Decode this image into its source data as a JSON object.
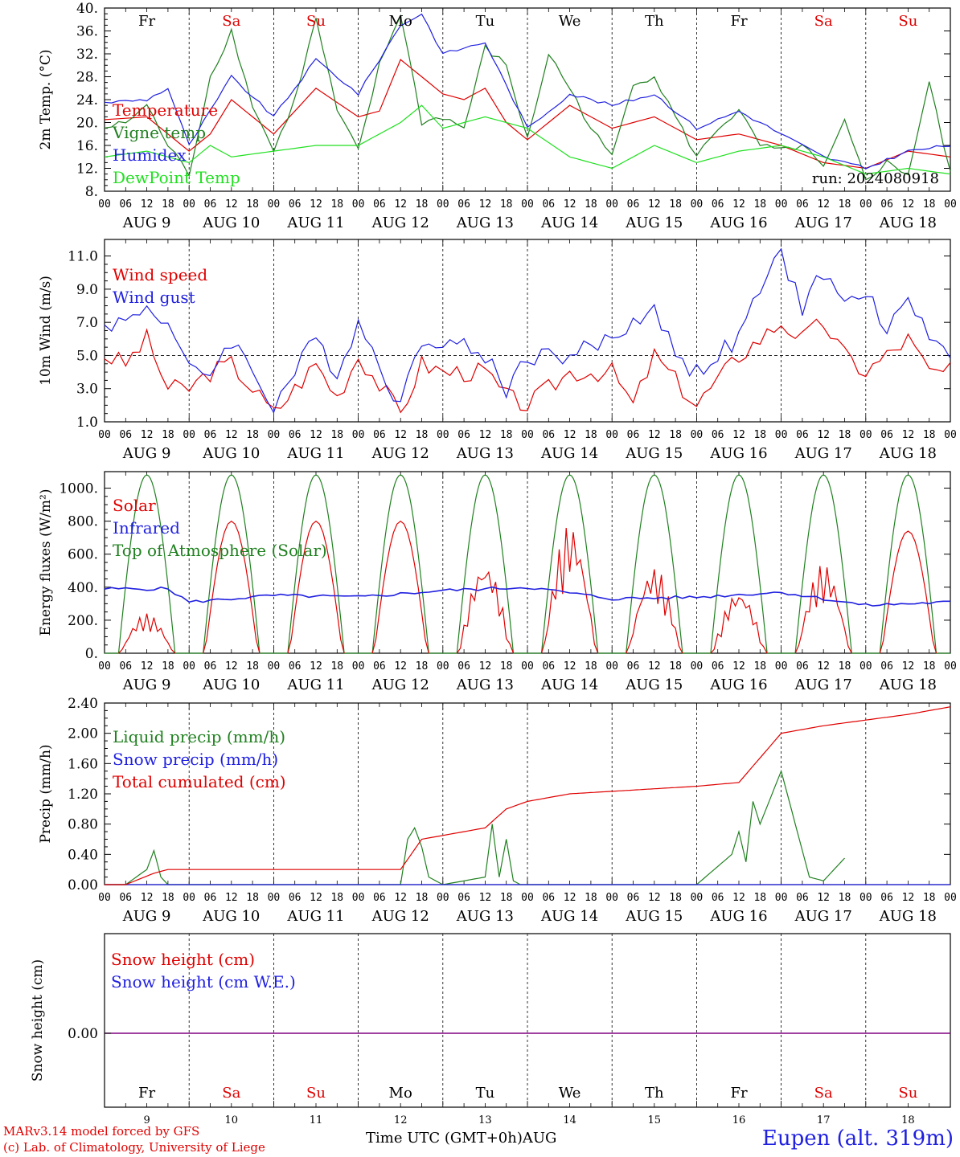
{
  "chart_data": [
    {
      "panel": "temperature",
      "type": "line",
      "ylabel": "2m Temp. (°C)",
      "ylim": [
        8,
        40
      ],
      "yticks": [
        "8.",
        "12.",
        "16.",
        "20.",
        "24.",
        "28.",
        "32.",
        "36.",
        "40."
      ],
      "run_label": "run: 2024080918",
      "day_labels": [
        "Fr",
        "Sa",
        "Su",
        "Mo",
        "Tu",
        "We",
        "Th",
        "Fr",
        "Sa",
        "Su"
      ],
      "weekend_color": "#e00000",
      "series": [
        {
          "name": "Temperature",
          "color": "#e00000",
          "x": [
            0,
            12,
            24,
            30,
            36,
            48,
            60,
            72,
            78,
            84,
            96,
            102,
            108,
            114,
            120,
            132,
            144,
            156,
            168,
            180,
            192,
            204,
            216,
            228,
            240
          ],
          "y": [
            20.5,
            21,
            15,
            18,
            24,
            18,
            26,
            21,
            22,
            31,
            25,
            24,
            26,
            20,
            17,
            23,
            19,
            21,
            17,
            18,
            16,
            13,
            12,
            15,
            14
          ]
        },
        {
          "name": "Vigne temp",
          "color": "#208020",
          "x": [
            0,
            6,
            12,
            18,
            24,
            30,
            36,
            42,
            48,
            54,
            60,
            66,
            72,
            78,
            84,
            90,
            96,
            102,
            108,
            114,
            120,
            126,
            132,
            138,
            144,
            150,
            156,
            162,
            168,
            174,
            180,
            186,
            192,
            198,
            204,
            210,
            216,
            222,
            228,
            234,
            240
          ],
          "y": [
            19,
            20,
            23,
            16,
            11,
            28,
            36,
            23,
            15,
            24,
            38,
            22,
            15,
            30,
            39,
            20,
            21,
            19,
            33,
            30,
            17,
            32,
            26,
            19,
            14,
            27,
            28,
            21,
            14,
            19,
            22,
            16,
            15,
            16,
            12,
            20,
            10,
            13,
            11,
            27,
            11
          ]
        },
        {
          "name": "Humidex",
          "color": "#2020e0",
          "x": [
            0,
            12,
            18,
            24,
            36,
            48,
            60,
            72,
            84,
            90,
            96,
            108,
            120,
            132,
            144,
            156,
            168,
            180,
            192,
            204,
            216,
            228,
            240
          ],
          "y": [
            23.5,
            24,
            26,
            16,
            28,
            21,
            31,
            25,
            37,
            39,
            32,
            34,
            19,
            25,
            23,
            25,
            19,
            22,
            18,
            14,
            12,
            15,
            16
          ]
        },
        {
          "name": "DewPoint Temp",
          "color": "#20e020",
          "x": [
            0,
            12,
            24,
            30,
            36,
            48,
            60,
            72,
            84,
            90,
            96,
            108,
            120,
            132,
            144,
            156,
            168,
            180,
            192,
            204,
            216,
            228,
            240
          ],
          "y": [
            14,
            15,
            13,
            16,
            14,
            15,
            16,
            16,
            20,
            23,
            19,
            21,
            19,
            14,
            12,
            16,
            13,
            15,
            16,
            14,
            11,
            12,
            11
          ]
        }
      ]
    },
    {
      "panel": "wind",
      "type": "line",
      "ylabel": "10m Wind (m/s)",
      "ylim": [
        1,
        12
      ],
      "yticks": [
        "1.0",
        "3.0",
        "5.0",
        "7.0",
        "9.0",
        "11.0"
      ],
      "reference_line": 5.0,
      "series": [
        {
          "name": "Wind speed",
          "color": "#e00000",
          "x": [
            0,
            6,
            12,
            18,
            24,
            30,
            36,
            48,
            60,
            66,
            72,
            84,
            90,
            96,
            108,
            114,
            120,
            132,
            144,
            150,
            156,
            168,
            180,
            192,
            198,
            204,
            210,
            216,
            222,
            228,
            234,
            240
          ],
          "y": [
            5,
            4.5,
            6,
            3,
            3,
            4,
            4.5,
            1.5,
            4.5,
            2.5,
            5,
            1.5,
            4.5,
            4,
            4,
            2.5,
            2,
            4,
            4,
            2,
            5,
            2,
            5,
            7,
            6,
            7,
            5,
            4,
            5,
            6,
            4,
            4
          ]
        },
        {
          "name": "Wind gust",
          "color": "#2020e0",
          "x": [
            0,
            6,
            12,
            18,
            24,
            30,
            36,
            48,
            60,
            66,
            72,
            84,
            90,
            96,
            108,
            114,
            120,
            132,
            144,
            156,
            162,
            168,
            180,
            186,
            192,
            198,
            204,
            210,
            216,
            222,
            228,
            234,
            240
          ],
          "y": [
            7,
            7,
            8,
            7,
            4,
            4,
            6,
            2,
            6,
            4,
            7,
            2,
            6,
            6,
            5,
            3,
            5,
            5,
            6,
            8,
            5,
            4,
            6,
            9,
            11,
            8,
            10,
            8,
            9,
            6,
            9,
            6,
            5
          ]
        }
      ]
    },
    {
      "panel": "energy",
      "type": "line",
      "ylabel": "Energy fluxes (W/m²)",
      "ylim": [
        0,
        1100
      ],
      "yticks": [
        "0.",
        "200.",
        "400.",
        "600.",
        "800.",
        "1000."
      ],
      "series": [
        {
          "name": "Solar",
          "color": "#e00000",
          "peaks": [
            240,
            800,
            800,
            800,
            550,
            780,
            520,
            380,
            540,
            740
          ]
        },
        {
          "name": "Infrared",
          "color": "#2020e0",
          "x": [
            0,
            18,
            24,
            48,
            72,
            96,
            120,
            144,
            168,
            192,
            216,
            240
          ],
          "y": [
            390,
            390,
            310,
            350,
            340,
            380,
            400,
            330,
            340,
            370,
            290,
            310
          ]
        },
        {
          "name": "Top of Atmosphere (Solar)",
          "color": "#208020",
          "peak": 1080
        }
      ]
    },
    {
      "panel": "precip",
      "type": "line",
      "ylabel": "Precip (mm/h)",
      "ylim": [
        0,
        2.4
      ],
      "yticks": [
        "0.00",
        "0.40",
        "0.80",
        "1.20",
        "1.60",
        "2.00",
        "2.40"
      ],
      "series": [
        {
          "name": "Liquid precip (mm/h)",
          "color": "#208020",
          "x": [
            0,
            6,
            12,
            14,
            16,
            18,
            84,
            86,
            88,
            90,
            92,
            96,
            108,
            110,
            112,
            114,
            116,
            118,
            120,
            168,
            178,
            180,
            182,
            184,
            186,
            192,
            200,
            204,
            210
          ],
          "y": [
            0,
            0,
            0.2,
            0.45,
            0.1,
            0,
            0,
            0.6,
            0.75,
            0.5,
            0.1,
            0,
            0.1,
            0.8,
            0.1,
            0.6,
            0.05,
            0,
            0,
            0,
            0.4,
            0.7,
            0.3,
            1.1,
            0.8,
            1.5,
            0.1,
            0.05,
            0.35
          ]
        },
        {
          "name": "Snow precip (mm/h)",
          "color": "#2020e0",
          "x": [
            0,
            240
          ],
          "y": [
            0,
            0
          ]
        },
        {
          "name": "Total cumulated (cm)",
          "color": "#e00000",
          "x": [
            0,
            6,
            14,
            18,
            84,
            90,
            96,
            108,
            114,
            120,
            132,
            168,
            180,
            192,
            204,
            228,
            240
          ],
          "y": [
            0,
            0,
            0.15,
            0.2,
            0.2,
            0.6,
            0.65,
            0.75,
            1.0,
            1.1,
            1.2,
            1.3,
            1.35,
            2.0,
            2.1,
            2.25,
            2.35
          ]
        }
      ]
    },
    {
      "panel": "snow",
      "type": "line",
      "ylabel": "Snow height (cm)",
      "ytick": "0.00",
      "series": [
        {
          "name": "Snow height (cm)",
          "color": "#e00000",
          "x": [
            0,
            240
          ],
          "y": [
            0,
            0
          ]
        },
        {
          "name": "Snow height (cm W.E.)",
          "color": "#2020e0",
          "x": [
            0,
            240
          ],
          "y": [
            0,
            0
          ]
        }
      ],
      "day_labels": [
        "Fr",
        "Sa",
        "Su",
        "Mo",
        "Tu",
        "We",
        "Th",
        "Fr",
        "Sa",
        "Su"
      ],
      "date_labels": [
        "9",
        "10",
        "11",
        "12",
        "13",
        "14",
        "15",
        "16",
        "17",
        "18"
      ]
    }
  ],
  "x_axis": {
    "hour_ticks": [
      "00",
      "06",
      "12",
      "18"
    ],
    "final_tick": "00",
    "date_labels": [
      "AUG  9",
      "AUG 10",
      "AUG 11",
      "AUG 12",
      "AUG 13",
      "AUG 14",
      "AUG 15",
      "AUG 16",
      "AUG 17",
      "AUG 18"
    ],
    "xlabel": "Time UTC (GMT+0h)",
    "month": "AUG"
  },
  "footer": {
    "model": "MARv3.14 model forced by GFS",
    "lab": "(c) Lab. of Climatology, University of Liege",
    "station": "Eupen (alt. 319m)"
  }
}
